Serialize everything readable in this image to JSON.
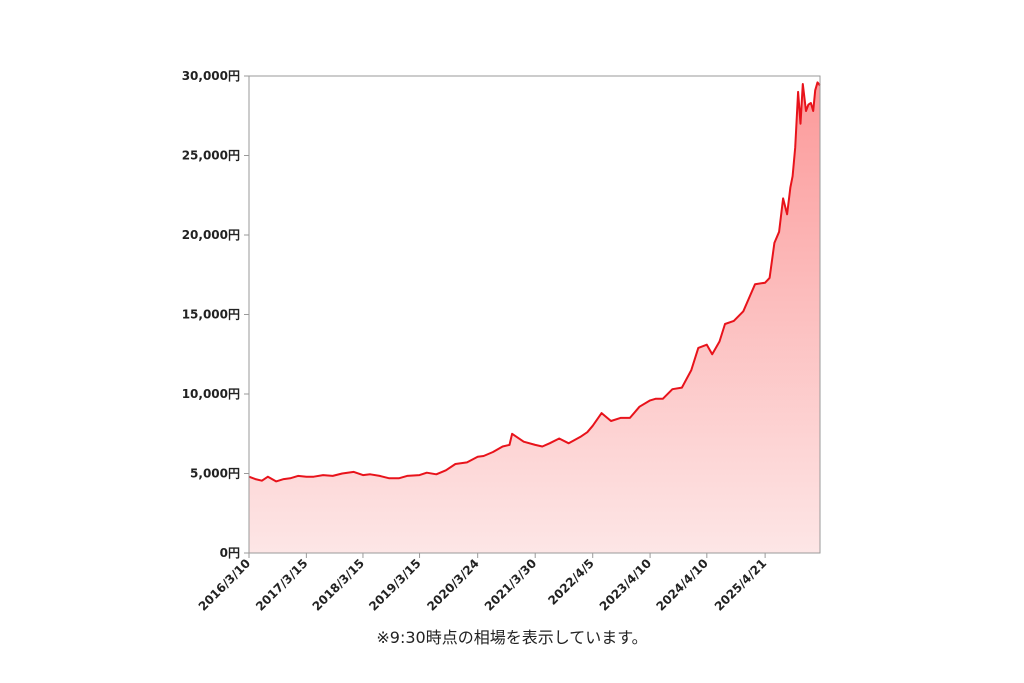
{
  "chart_data": {
    "type": "area",
    "title": "",
    "xlabel": "",
    "ylabel": "",
    "ylim": [
      0,
      30000
    ],
    "y_tick_labels": [
      "0円",
      "5,000円",
      "10,000円",
      "15,000円",
      "20,000円",
      "25,000円",
      "30,000円"
    ],
    "y_tick_values": [
      0,
      5000,
      10000,
      15000,
      20000,
      25000,
      30000
    ],
    "x_tick_labels": [
      "2016/3/10",
      "2017/3/15",
      "2018/3/15",
      "2019/3/15",
      "2020/3/24",
      "2021/3/30",
      "2022/4/5",
      "2023/4/10",
      "2024/4/10",
      "2025/4/21"
    ],
    "x_tick_values": [
      "2016-03-10",
      "2017-03-15",
      "2018-03-15",
      "2019-03-15",
      "2020-03-24",
      "2021-03-30",
      "2022-04-05",
      "2023-04-10",
      "2024-04-10",
      "2025-04-21"
    ],
    "xlim": [
      "2016-03-10",
      "2026-04-10"
    ],
    "grid": false,
    "legend": "none",
    "line_color": "#e8131b",
    "fill_color_top": "#fc9a9a",
    "fill_color_bottom": "#fde6e6",
    "series": [
      {
        "x": [
          "2016-03-10",
          "2016-04-20",
          "2016-06-01",
          "2016-07-10",
          "2016-09-01",
          "2016-10-20",
          "2016-12-01",
          "2017-01-20",
          "2017-03-15",
          "2017-05-01",
          "2017-07-01",
          "2017-09-01",
          "2017-11-01",
          "2018-01-15",
          "2018-03-15",
          "2018-05-01",
          "2018-07-01",
          "2018-09-01",
          "2018-11-01",
          "2018-12-25",
          "2019-03-15",
          "2019-05-01",
          "2019-07-01",
          "2019-09-01",
          "2019-11-01",
          "2020-01-15",
          "2020-03-24",
          "2020-05-01",
          "2020-07-01",
          "2020-09-01",
          "2020-10-15",
          "2020-11-01",
          "2021-01-15",
          "2021-03-30",
          "2021-05-15",
          "2021-07-01",
          "2021-09-01",
          "2021-11-01",
          "2022-01-15",
          "2022-03-01",
          "2022-04-05",
          "2022-06-01",
          "2022-08-01",
          "2022-10-01",
          "2022-12-01",
          "2023-02-01",
          "2023-04-10",
          "2023-05-15",
          "2023-07-01",
          "2023-09-01",
          "2023-11-01",
          "2024-01-01",
          "2024-02-15",
          "2024-04-10",
          "2024-05-15",
          "2024-07-01",
          "2024-08-05",
          "2024-10-01",
          "2024-12-01",
          "2025-01-15",
          "2025-02-15",
          "2025-04-21",
          "2025-05-20",
          "2025-06-20",
          "2025-07-20",
          "2025-08-15",
          "2025-09-10",
          "2025-10-01",
          "2025-10-15",
          "2025-11-01",
          "2025-11-20",
          "2025-12-05",
          "2025-12-20",
          "2026-01-10",
          "2026-01-25",
          "2026-02-10",
          "2026-02-25",
          "2026-03-10",
          "2026-03-25",
          "2026-04-10"
        ],
        "y": [
          4800,
          4650,
          4550,
          4800,
          4500,
          4650,
          4700,
          4850,
          4800,
          4800,
          4900,
          4850,
          5000,
          5100,
          4900,
          4950,
          4850,
          4700,
          4700,
          4850,
          4900,
          5050,
          4950,
          5200,
          5600,
          5700,
          6050,
          6100,
          6350,
          6700,
          6800,
          7500,
          7000,
          6800,
          6700,
          6900,
          7200,
          6900,
          7300,
          7600,
          8000,
          8800,
          8300,
          8500,
          8500,
          9200,
          9600,
          9700,
          9700,
          10300,
          10400,
          11500,
          12900,
          13100,
          12500,
          13300,
          14400,
          14600,
          15200,
          16200,
          16900,
          17000,
          17300,
          19500,
          20200,
          22300,
          21300,
          23000,
          23700,
          25500,
          29000,
          27000,
          29500,
          27800,
          28200,
          28300,
          27800,
          29100,
          29600,
          29400
        ]
      }
    ]
  },
  "note": "※9:30時点の相場を表示しています。"
}
